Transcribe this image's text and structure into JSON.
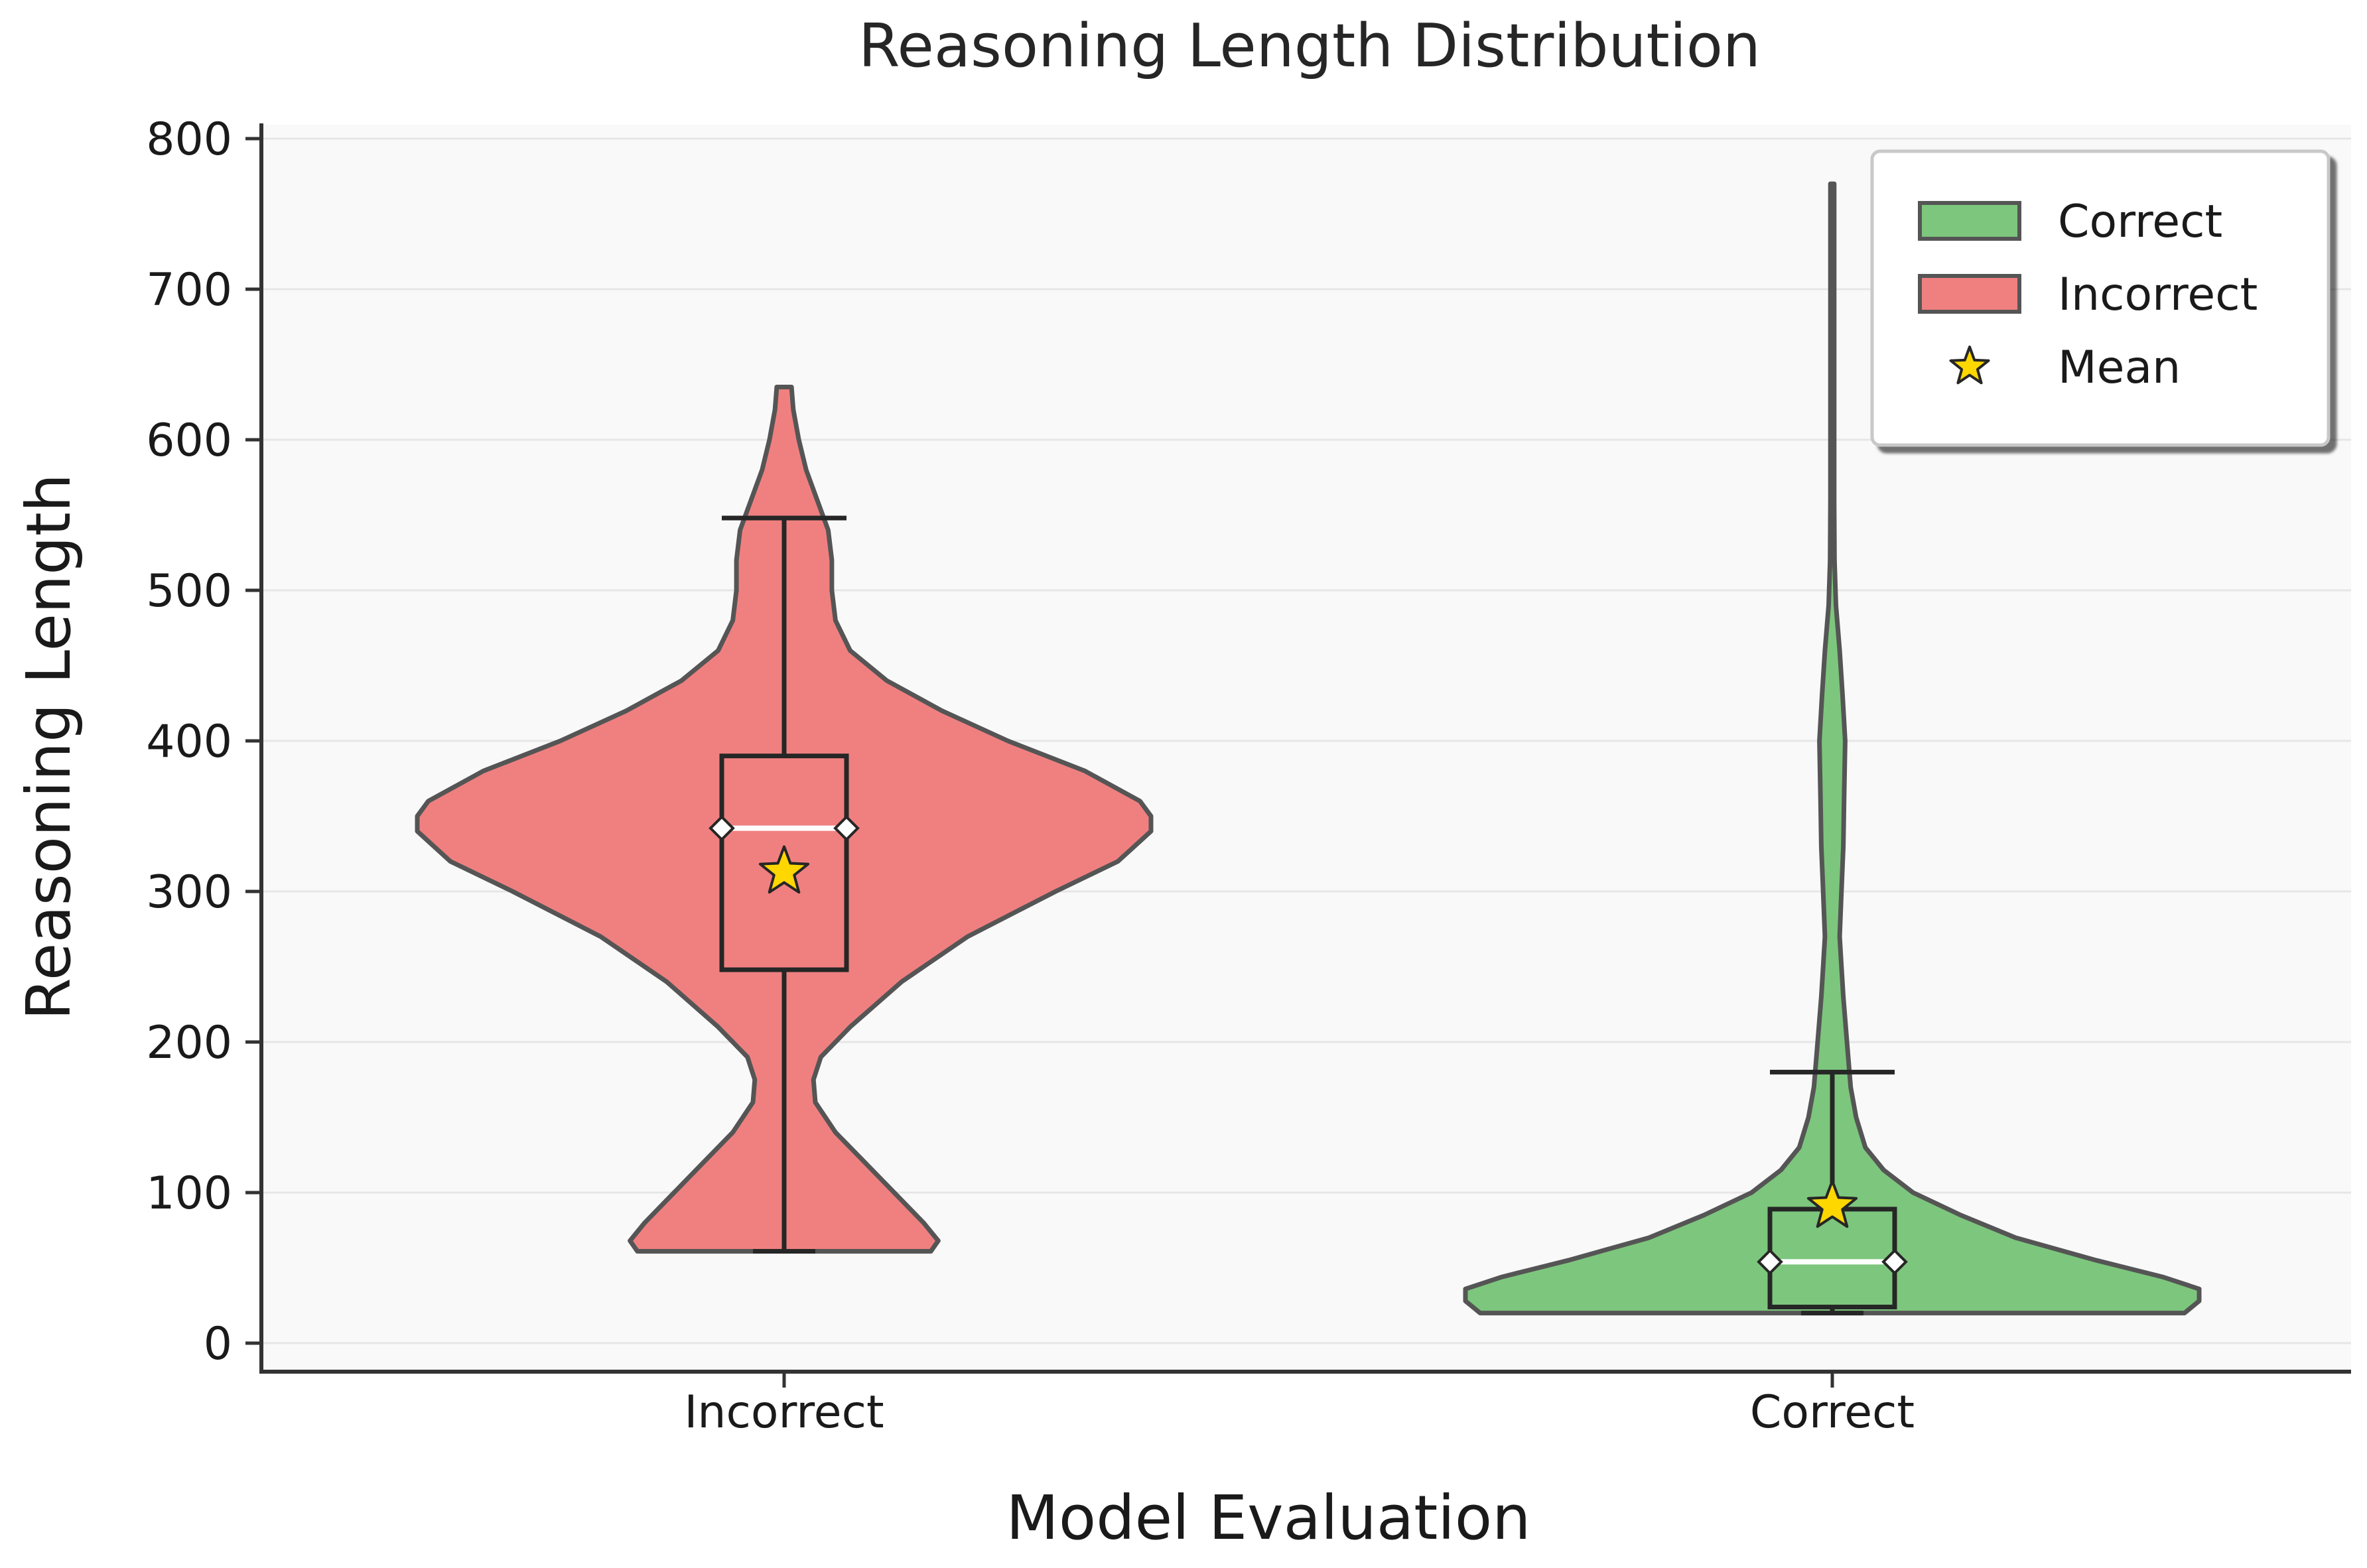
{
  "chart_data": {
    "type": "violin",
    "title": "Reasoning Length Distribution",
    "xlabel": "Model Evaluation",
    "ylabel": "Reasoning Length",
    "ylim": [
      -18,
      810
    ],
    "yticks": [
      0,
      100,
      200,
      300,
      400,
      500,
      600,
      700,
      800
    ],
    "grid": "horizontal",
    "legend_position": "top-right",
    "legend": [
      {
        "label": "Correct",
        "kind": "patch",
        "color": "#4daf4a"
      },
      {
        "label": "Incorrect",
        "kind": "patch",
        "color": "#e8413f"
      },
      {
        "label": "Mean",
        "kind": "star",
        "color": "#ffd700"
      }
    ],
    "groups": [
      {
        "name": "Incorrect",
        "color": "#ee6363",
        "stats": {
          "min": 61,
          "q1": 248,
          "median": 342,
          "q3": 390,
          "max": 548,
          "mean": 313,
          "violin_min": 61,
          "violin_max": 635
        },
        "density": [
          [
            61,
            0.4
          ],
          [
            68,
            0.42
          ],
          [
            80,
            0.38
          ],
          [
            100,
            0.3
          ],
          [
            120,
            0.22
          ],
          [
            140,
            0.14
          ],
          [
            160,
            0.085
          ],
          [
            175,
            0.08
          ],
          [
            190,
            0.1
          ],
          [
            210,
            0.18
          ],
          [
            240,
            0.32
          ],
          [
            270,
            0.5
          ],
          [
            300,
            0.74
          ],
          [
            320,
            0.91
          ],
          [
            340,
            1.0
          ],
          [
            350,
            1.0
          ],
          [
            360,
            0.97
          ],
          [
            380,
            0.82
          ],
          [
            400,
            0.61
          ],
          [
            420,
            0.43
          ],
          [
            440,
            0.28
          ],
          [
            460,
            0.18
          ],
          [
            480,
            0.14
          ],
          [
            500,
            0.13
          ],
          [
            520,
            0.13
          ],
          [
            540,
            0.12
          ],
          [
            560,
            0.09
          ],
          [
            580,
            0.06
          ],
          [
            600,
            0.04
          ],
          [
            620,
            0.025
          ],
          [
            635,
            0.02
          ]
        ]
      },
      {
        "name": "Correct",
        "color": "#4daf4a",
        "stats": {
          "min": 20,
          "q1": 24,
          "median": 54,
          "q3": 89,
          "max": 180,
          "mean": 91,
          "violin_min": 20,
          "violin_max": 770
        },
        "density": [
          [
            20,
            0.96
          ],
          [
            28,
            1.0
          ],
          [
            36,
            1.0
          ],
          [
            44,
            0.9
          ],
          [
            55,
            0.72
          ],
          [
            70,
            0.5
          ],
          [
            85,
            0.35
          ],
          [
            100,
            0.22
          ],
          [
            115,
            0.14
          ],
          [
            130,
            0.09
          ],
          [
            150,
            0.065
          ],
          [
            170,
            0.05
          ],
          [
            200,
            0.04
          ],
          [
            230,
            0.03
          ],
          [
            250,
            0.025
          ],
          [
            270,
            0.02
          ],
          [
            300,
            0.025
          ],
          [
            330,
            0.03
          ],
          [
            360,
            0.032
          ],
          [
            400,
            0.035
          ],
          [
            430,
            0.028
          ],
          [
            460,
            0.02
          ],
          [
            490,
            0.01
          ],
          [
            520,
            0.006
          ],
          [
            560,
            0.005
          ],
          [
            620,
            0.005
          ],
          [
            700,
            0.005
          ],
          [
            770,
            0.005
          ]
        ]
      }
    ]
  }
}
